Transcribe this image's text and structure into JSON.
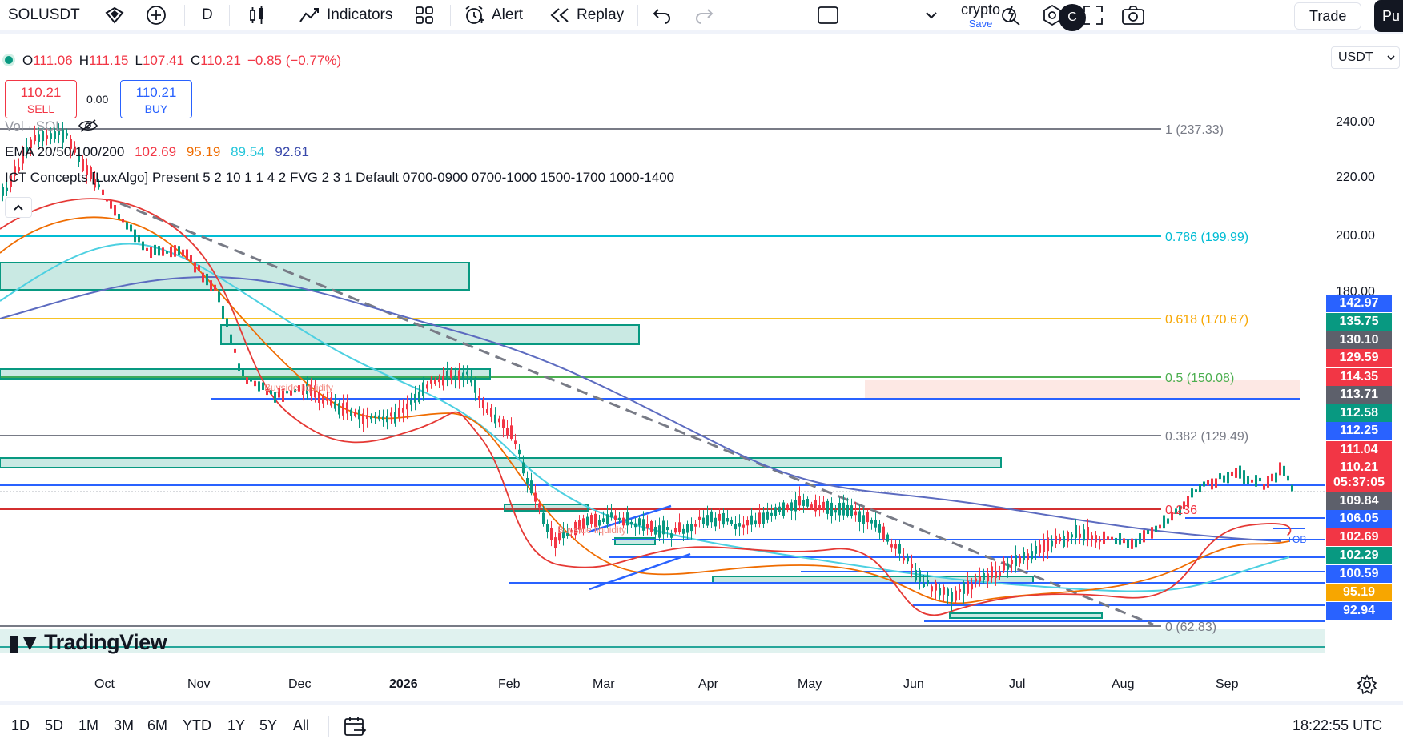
{
  "toolbar": {
    "symbol": "SOLUSDT",
    "interval": "D",
    "indicators_label": "Indicators",
    "alert_label": "Alert",
    "replay_label": "Replay",
    "layout_name": "crypto",
    "layout_save": "Save",
    "avatar_letter": "C",
    "trade_label": "Trade",
    "publish_label": "Pu"
  },
  "legend": {
    "ohlc": {
      "o_k": "O",
      "o": "111.06",
      "h_k": "H",
      "h": "111.15",
      "l_k": "L",
      "l": "107.41",
      "c_k": "C",
      "c": "110.21",
      "chg": "−0.85 (−0.77%)"
    },
    "sell": {
      "price": "110.21",
      "label": "SELL"
    },
    "buy": {
      "price": "110.21",
      "label": "BUY"
    },
    "spread": "0.00",
    "volume": "Vol · SOL",
    "ema": {
      "name": "EMA 20/50/100/200",
      "v20": "102.69",
      "v50": "95.19",
      "v100": "89.54",
      "v200": "92.61"
    },
    "ict": "ICT Concepts [LuxAlgo] Present 5 2 10 1 1 4 2 FVG 2 3 1 Default 0700-0900 0700-1000 1500-1700 1000-1400"
  },
  "currency": "USDT",
  "price_axis_ticks": [
    "240.00",
    "220.00",
    "200.00",
    "180.00"
  ],
  "price_labels": [
    {
      "text": "142.97",
      "color": "#2962ff"
    },
    {
      "text": "135.75",
      "color": "#089981"
    },
    {
      "text": "130.10",
      "color": "#5d606b"
    },
    {
      "text": "129.59",
      "color": "#f23645"
    },
    {
      "text": "114.35",
      "color": "#f23645"
    },
    {
      "text": "113.71",
      "color": "#5d606b"
    },
    {
      "text": "112.58",
      "color": "#089981"
    },
    {
      "text": "112.25",
      "color": "#2962ff"
    },
    {
      "text": "111.04",
      "color": "#f23645"
    },
    {
      "text": "110.21",
      "color": "#f23645"
    },
    {
      "text": "05:37:05",
      "color": "#f23645"
    },
    {
      "text": "109.84",
      "color": "#5d606b"
    },
    {
      "text": "106.05",
      "color": "#2962ff"
    },
    {
      "text": "102.69",
      "color": "#f23645"
    },
    {
      "text": "102.29",
      "color": "#089981"
    },
    {
      "text": "100.59",
      "color": "#2962ff"
    },
    {
      "text": "95.19",
      "color": "#f7a600"
    },
    {
      "text": "92.94",
      "color": "#2962ff"
    }
  ],
  "fib_levels": [
    {
      "text": "1 (237.33)",
      "color": "#787b86"
    },
    {
      "text": "0.786 (199.99)",
      "color": "#00bcd4"
    },
    {
      "text": "0.618 (170.67)",
      "color": "#f7c325"
    },
    {
      "text": "0.5 (150.08)",
      "color": "#4caf50"
    },
    {
      "text": "0.382 (129.49)",
      "color": "#787b86"
    },
    {
      "text": "0.236",
      "color": "#f23645"
    },
    {
      "text": "0 (62.83)",
      "color": "#787b86"
    }
  ],
  "annotations": {
    "buyside1": "Buyside liquidity",
    "buyside2": "Buyside liquidity",
    "ob": "+OB"
  },
  "time_axis": [
    "Oct",
    "Nov",
    "Dec",
    "2026",
    "Feb",
    "Mar",
    "Apr",
    "May",
    "Jun",
    "Jul",
    "Aug",
    "Sep"
  ],
  "watermark": "TradingView",
  "ranges": [
    "1D",
    "5D",
    "1M",
    "3M",
    "6M",
    "YTD",
    "1Y",
    "5Y",
    "All"
  ],
  "clock": "18:22:55 UTC",
  "colors": {
    "up": "#089981",
    "down": "#f23645",
    "accent": "#2962ff"
  }
}
